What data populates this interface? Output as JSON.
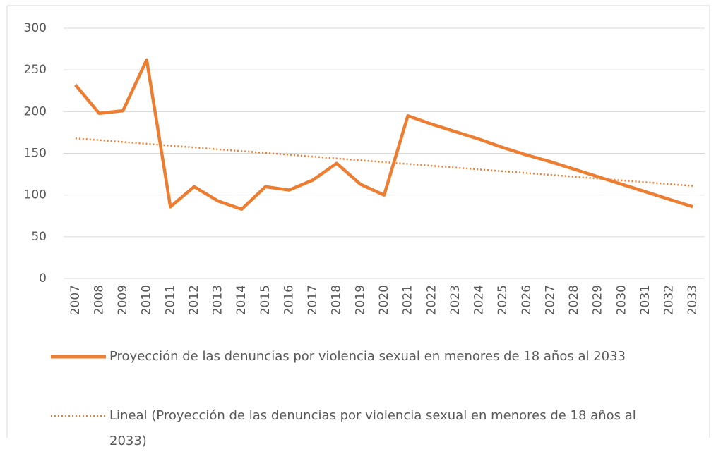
{
  "chart_data": {
    "type": "line",
    "categories": [
      "2007",
      "2008",
      "2009",
      "2010",
      "2011",
      "2012",
      "2013",
      "2014",
      "2015",
      "2016",
      "2017",
      "2018",
      "2019",
      "2020",
      "2021",
      "2022",
      "2023",
      "2024",
      "2025",
      "2026",
      "2027",
      "2028",
      "2029",
      "2030",
      "2031",
      "2032",
      "2033"
    ],
    "series": [
      {
        "name": "Proyección de las denuncias por violencia sexual en menores de 18 años al 2033",
        "color": "#ed7d31",
        "values": [
          232,
          198,
          201,
          262,
          86,
          110,
          93,
          83,
          110,
          106,
          118,
          138,
          113,
          100,
          195,
          185,
          176,
          167,
          157,
          148,
          140,
          131,
          122,
          113,
          104,
          95,
          86
        ]
      }
    ],
    "trendline": {
      "name": "Lineal (Proyección de las denuncias por violencia sexual en menores de 18 años al 2033)",
      "color": "#ed7d31",
      "x": [
        "2007",
        "2033"
      ],
      "values": [
        168,
        111
      ]
    },
    "ylim": [
      0,
      300
    ],
    "yticks": [
      0,
      50,
      100,
      150,
      200,
      250,
      300
    ],
    "grid": true
  }
}
